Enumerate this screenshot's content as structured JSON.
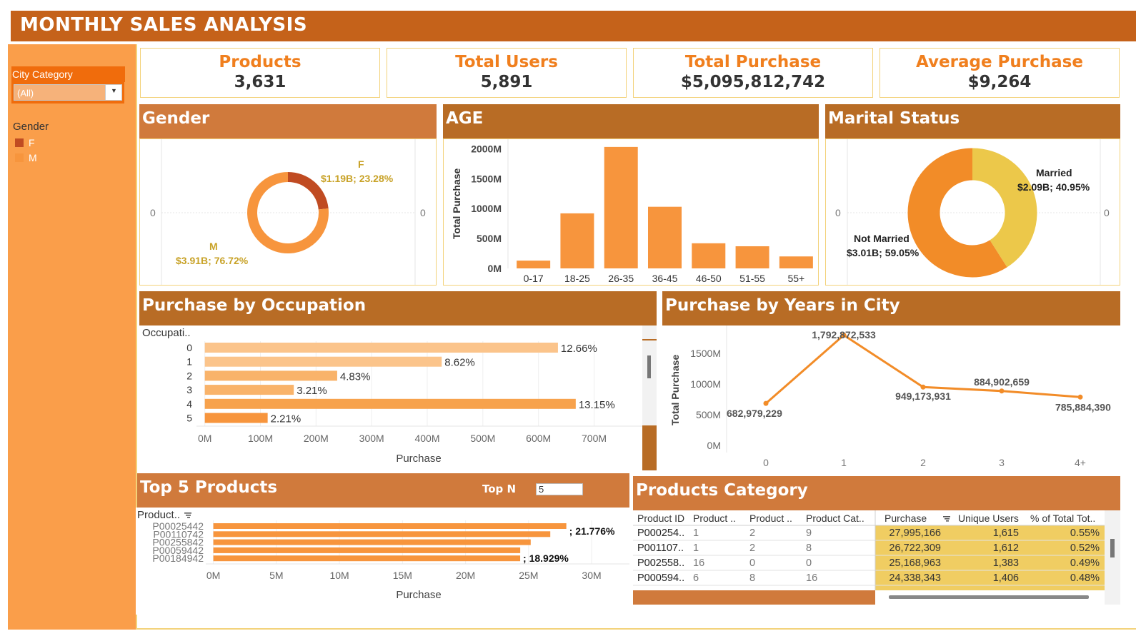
{
  "title": "MONTHLY SALES ANALYSIS",
  "colors": {
    "accent_dark": "#c5621a",
    "sidebar": "#fa9e4a",
    "orange": "#f7953d",
    "light": "#fbc48b",
    "female": "#c04b22",
    "married": "#ecc84a",
    "highlight": "#f0cd62"
  },
  "filters": {
    "city_category": {
      "label": "City Category",
      "value": "(All)",
      "icon": "chevron-down-icon"
    },
    "gender_legend": {
      "title": "Gender",
      "items": [
        {
          "label": "F",
          "color": "#c04b22"
        },
        {
          "label": "M",
          "color": "#f7953d"
        }
      ]
    }
  },
  "kpis": [
    {
      "title": "Products",
      "value": "3,631"
    },
    {
      "title": "Total Users",
      "value": "5,891"
    },
    {
      "title": "Total Purchase",
      "value": "$5,095,812,742"
    },
    {
      "title": "Average Purchase",
      "value": "$9,264"
    }
  ],
  "panels": {
    "gender": "Gender",
    "age": "AGE",
    "marital": "Marital Status",
    "occupation": "Purchase by Occupation",
    "years": "Purchase by Years in City",
    "top5": "Top 5 Products",
    "top_n_label": "Top N",
    "top_n_value": "5",
    "category": "Products Category"
  },
  "chart_data": [
    {
      "type": "pie",
      "id": "gender",
      "donut": true,
      "zero_labels": [
        "0",
        "0"
      ],
      "slices": [
        {
          "name": "F",
          "value": 1.19,
          "share": 23.28,
          "label": "$1.19B; 23.28%",
          "color": "#c04b22"
        },
        {
          "name": "M",
          "value": 3.91,
          "share": 76.72,
          "label": "$3.91B; 76.72%",
          "color": "#f7953d"
        }
      ]
    },
    {
      "type": "bar",
      "id": "age",
      "categories": [
        "0-17",
        "18-25",
        "26-35",
        "36-45",
        "46-50",
        "51-55",
        "55+"
      ],
      "values": [
        130,
        920,
        2030,
        1030,
        420,
        370,
        200
      ],
      "ylabel": "Total Purchase",
      "ylim": [
        0,
        2100
      ],
      "yticks": [
        "0M",
        "500M",
        "1000M",
        "1500M",
        "2000M"
      ],
      "yticks_values": [
        0,
        500,
        1000,
        1500,
        2000
      ]
    },
    {
      "type": "pie",
      "id": "marital",
      "donut": true,
      "zero_labels": [
        "0",
        "0"
      ],
      "slices": [
        {
          "name": "Married",
          "value": 2.09,
          "share": 40.95,
          "label": "$2.09B; 40.95%",
          "color": "#ecc84a"
        },
        {
          "name": "Not Married",
          "value": 3.01,
          "share": 59.05,
          "label": "$3.01B; 59.05%",
          "color": "#f28c28"
        }
      ]
    },
    {
      "type": "bar",
      "id": "occupation",
      "orientation": "horizontal",
      "axis_title": "Occupati..",
      "categories": [
        "0",
        "1",
        "2",
        "3",
        "4",
        "5"
      ],
      "values": [
        635,
        426,
        238,
        160,
        667,
        113
      ],
      "labels": [
        "12.66%",
        "8.62%",
        "4.83%",
        "3.21%",
        "13.15%",
        "2.21%"
      ],
      "xlabel": "Purchase",
      "xlim": [
        -15,
        770
      ],
      "xticks": [
        "0M",
        "100M",
        "200M",
        "300M",
        "400M",
        "500M",
        "600M",
        "700M"
      ],
      "xticks_values": [
        0,
        100,
        200,
        300,
        400,
        500,
        600,
        700
      ]
    },
    {
      "type": "line",
      "id": "years",
      "categories": [
        "0",
        "1",
        "2",
        "3",
        "4+"
      ],
      "values": [
        682979229,
        1792872533,
        949173931,
        884902659,
        785884390
      ],
      "labels": [
        "682,979,229",
        "1,792,872,533",
        "949,173,931",
        "884,902,659",
        "785,884,390"
      ],
      "ylabel": "Total Purchase",
      "ylim": [
        0,
        1950000000
      ],
      "yticks": [
        "0M",
        "500M",
        "1000M",
        "1500M"
      ],
      "yticks_values": [
        0,
        500000000,
        1000000000,
        1500000000
      ]
    },
    {
      "type": "bar",
      "id": "top5",
      "orientation": "horizontal",
      "axis_title": "Product..",
      "categories": [
        "P00025442",
        "P00110742",
        "P00255842",
        "P00059442",
        "P00184942"
      ],
      "values": [
        27.995,
        26.722,
        25.169,
        24.338,
        24.334
      ],
      "labels": [
        "; 21.776%",
        "",
        "",
        "",
        "; 18.929%"
      ],
      "xlabel": "Purchase",
      "xlim": [
        -0.6,
        33
      ],
      "xticks": [
        "0M",
        "5M",
        "10M",
        "15M",
        "20M",
        "25M",
        "30M"
      ],
      "xticks_values": [
        0,
        5,
        10,
        15,
        20,
        25,
        30
      ]
    },
    {
      "type": "table",
      "id": "category",
      "columns": [
        "Product ID",
        "Product ..",
        "Product ..",
        "Product Cat..",
        "Purchase",
        "Unique Users",
        "% of Total Tot.."
      ],
      "rows": [
        [
          "P000254..",
          "1",
          "2",
          "9",
          "27,995,166",
          "1,615",
          "0.55%"
        ],
        [
          "P001107..",
          "1",
          "2",
          "8",
          "26,722,309",
          "1,612",
          "0.52%"
        ],
        [
          "P002558..",
          "16",
          "0",
          "0",
          "25,168,963",
          "1,383",
          "0.49%"
        ],
        [
          "P000594..",
          "6",
          "8",
          "16",
          "24,338,343",
          "1,406",
          "0.48%"
        ]
      ]
    }
  ]
}
